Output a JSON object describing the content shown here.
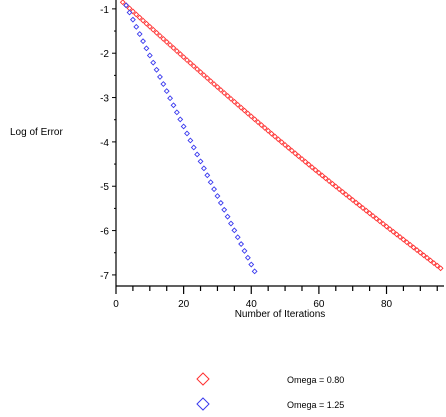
{
  "chart_data": {
    "type": "scatter",
    "xlabel": "Number of Iterations",
    "ylabel": "Log of Error",
    "xlim": [
      0,
      97
    ],
    "ylim": [
      -7.25,
      -0.8
    ],
    "xticks": [
      0,
      20,
      40,
      60,
      80
    ],
    "yticks": [
      -1,
      -2,
      -3,
      -4,
      -5,
      -6,
      -7
    ],
    "grid": false,
    "legend_position": "bottom",
    "marker": "open-diamond",
    "series": [
      {
        "name": "Omega = 0.80",
        "color": "#ff3030",
        "x_start": 2,
        "x_end": 96,
        "x_step": 1,
        "y_start": -0.85,
        "y_end": -6.85,
        "curvature": 0.65
      },
      {
        "name": "Omega = 1.25",
        "color": "#3a3aee",
        "x_start": 3,
        "x_end": 41,
        "x_step": 1,
        "y_start": -0.92,
        "y_end": -6.92,
        "curvature": 0.2
      }
    ]
  }
}
